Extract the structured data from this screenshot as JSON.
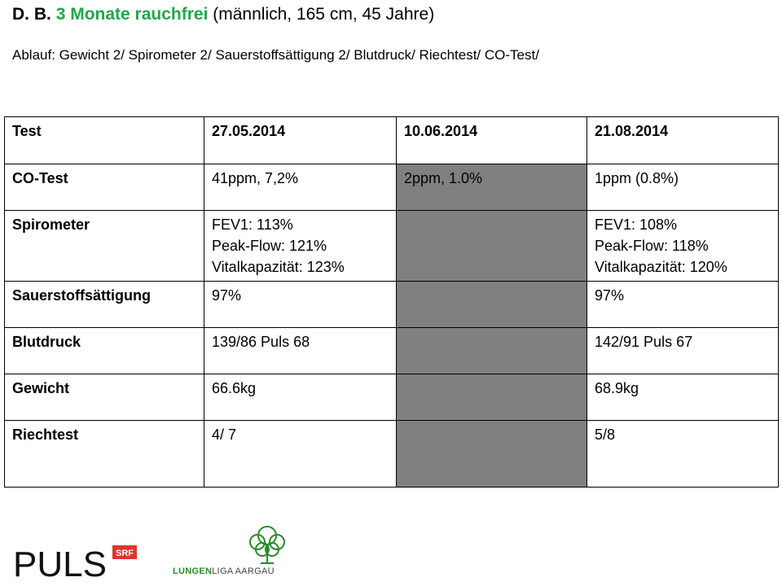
{
  "header": {
    "initials": "D. B.",
    "highlight": "3 Monate rauchfrei",
    "details": "(männlich, 165 cm, 45 Jahre)",
    "sequence": "Ablauf: Gewicht 2/ Spirometer 2/ Sauerstoffsättigung 2/ Blutdruck/ Riechtest/ CO-Test/"
  },
  "table": {
    "headers": [
      "Test",
      "27.05.2014",
      "10.06.2014",
      "21.08.2014"
    ],
    "rows": [
      {
        "label": "CO-Test",
        "cells": [
          [
            "41ppm, 7,2%"
          ],
          [
            "2ppm,  1.0%"
          ],
          [
            "1ppm (0.8%)"
          ]
        ]
      },
      {
        "label": "Spirometer",
        "cells": [
          [
            "FEV1: 113%",
            "Peak-Flow: 121%",
            "Vitalkapazität: 123%"
          ],
          [],
          [
            "FEV1: 108%",
            "Peak-Flow: 118%",
            "Vitalkapazität: 120%"
          ]
        ]
      },
      {
        "label": "Sauerstoffsättigung",
        "cells": [
          [
            "97%"
          ],
          [],
          [
            "97%"
          ]
        ]
      },
      {
        "label": "Blutdruck",
        "cells": [
          [
            "139/86 Puls 68"
          ],
          [],
          [
            "142/91 Puls 67"
          ]
        ]
      },
      {
        "label": "Gewicht",
        "cells": [
          [
            "66.6kg"
          ],
          [],
          [
            "68.9kg"
          ]
        ]
      },
      {
        "label": "Riechtest",
        "cells": [
          [
            "4/ 7"
          ],
          [],
          [
            "5/8"
          ]
        ]
      }
    ]
  },
  "logos": {
    "puls": {
      "text": "PULS",
      "badge": "SRF"
    },
    "lungenliga": {
      "bold": "LUNGEN",
      "rest": "LIGA AARGAU"
    }
  },
  "colors": {
    "accent_green": "#22a54a",
    "shaded_cell": "#808080",
    "srf_red": "#e0342b"
  }
}
